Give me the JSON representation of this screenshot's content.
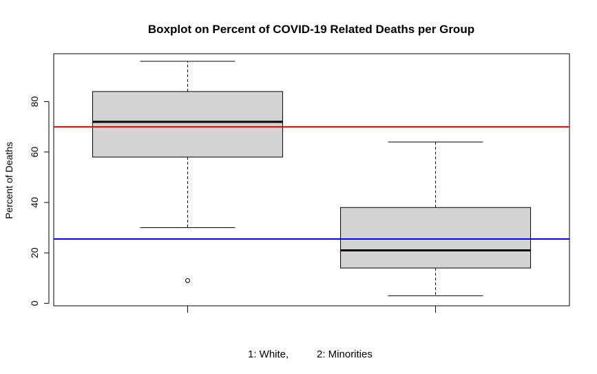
{
  "chart_data": {
    "type": "boxplot",
    "title": "Boxplot on Percent of COVID-19 Related Deaths per Group",
    "ylabel": "Percent of Deaths",
    "xlabel_parts": [
      "1: White,",
      "2: Minorities"
    ],
    "ylim": [
      -1,
      99
    ],
    "yticks": [
      0,
      20,
      40,
      60,
      80
    ],
    "groups": [
      {
        "whisker_low": 30,
        "q1": 58,
        "median": 72,
        "q3": 84,
        "whisker_high": 96,
        "outliers": [
          9
        ]
      },
      {
        "whisker_low": 3,
        "q1": 14,
        "median": 21,
        "q3": 38,
        "whisker_high": 64,
        "outliers": []
      }
    ],
    "reference_lines": [
      {
        "value": 70,
        "color": "#ff0000"
      },
      {
        "value": 25.5,
        "color": "#0000ff"
      }
    ],
    "box_fill": "#d3d3d3"
  }
}
